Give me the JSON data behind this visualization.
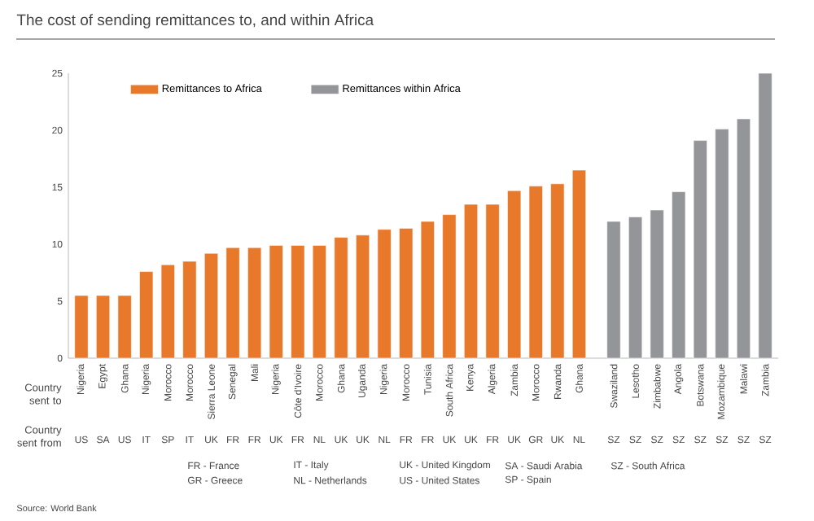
{
  "chart_data": {
    "type": "bar",
    "title": "The cost of sending remittances to, and within Africa",
    "xlabel": "Country sent to",
    "categories": [
      "Nigeria",
      "Egypt",
      "Ghana",
      "Nigeria",
      "Morocco",
      "Morocco",
      "Sierra Leone",
      "Senegal",
      "Mali",
      "Nigeria",
      "Côte d'Ivoire",
      "Morocco",
      "Ghana",
      "Uganda",
      "Nigeria",
      "Morocco",
      "Tunisia",
      "South Africa",
      "Kenya",
      "Algeria",
      "Zambia",
      "Morocco",
      "Rwanda",
      "Ghana",
      "Swaziland",
      "Lesotho",
      "Zimbabwe",
      "Angola",
      "Botswana",
      "Mozambique",
      "Malawi",
      "Zambia"
    ],
    "series": [
      {
        "name": "Remittances to Africa",
        "color": "#e8792a",
        "values": [
          5.5,
          5.5,
          5.5,
          7.6,
          8.2,
          8.5,
          9.2,
          9.7,
          9.7,
          9.9,
          9.9,
          9.9,
          10.6,
          10.8,
          11.3,
          11.4,
          12.0,
          12.6,
          13.5,
          13.5,
          14.7,
          15.1,
          15.3,
          16.5,
          null,
          null,
          null,
          null,
          null,
          null,
          null,
          null
        ]
      },
      {
        "name": "Remittances within Africa",
        "color": "#939598",
        "values": [
          null,
          null,
          null,
          null,
          null,
          null,
          null,
          null,
          null,
          null,
          null,
          null,
          null,
          null,
          null,
          null,
          null,
          null,
          null,
          null,
          null,
          null,
          null,
          null,
          12.0,
          12.4,
          13.0,
          14.6,
          19.1,
          20.1,
          21.0,
          25
        ]
      }
    ],
    "ylim": [
      0,
      25
    ],
    "yticks": [
      0,
      5,
      10,
      15,
      20,
      25
    ],
    "legend": "top left",
    "grid": false,
    "annotations": [
      "Country sent from",
      "US",
      "SA",
      "US",
      "IT",
      "SP",
      "IT",
      "UK",
      "FR",
      "FR",
      "UK",
      "FR",
      "NL",
      "UK",
      "UK",
      "NL",
      "FR",
      "FR",
      "UK",
      "UK",
      "FR",
      "UK",
      "GR",
      "UK",
      "NL",
      "SZ",
      "SZ",
      "SZ",
      "SZ",
      "SZ",
      "SZ",
      "SZ",
      "SZ",
      "FR - France",
      "GR - Greece",
      "IT - Italy",
      "NL - Netherlands",
      "UK - United Kingdom",
      "US - United States",
      "SA - Saudi Arabia",
      "SP - Spain",
      "SZ - South Africa",
      "Source: World Bank"
    ]
  }
}
